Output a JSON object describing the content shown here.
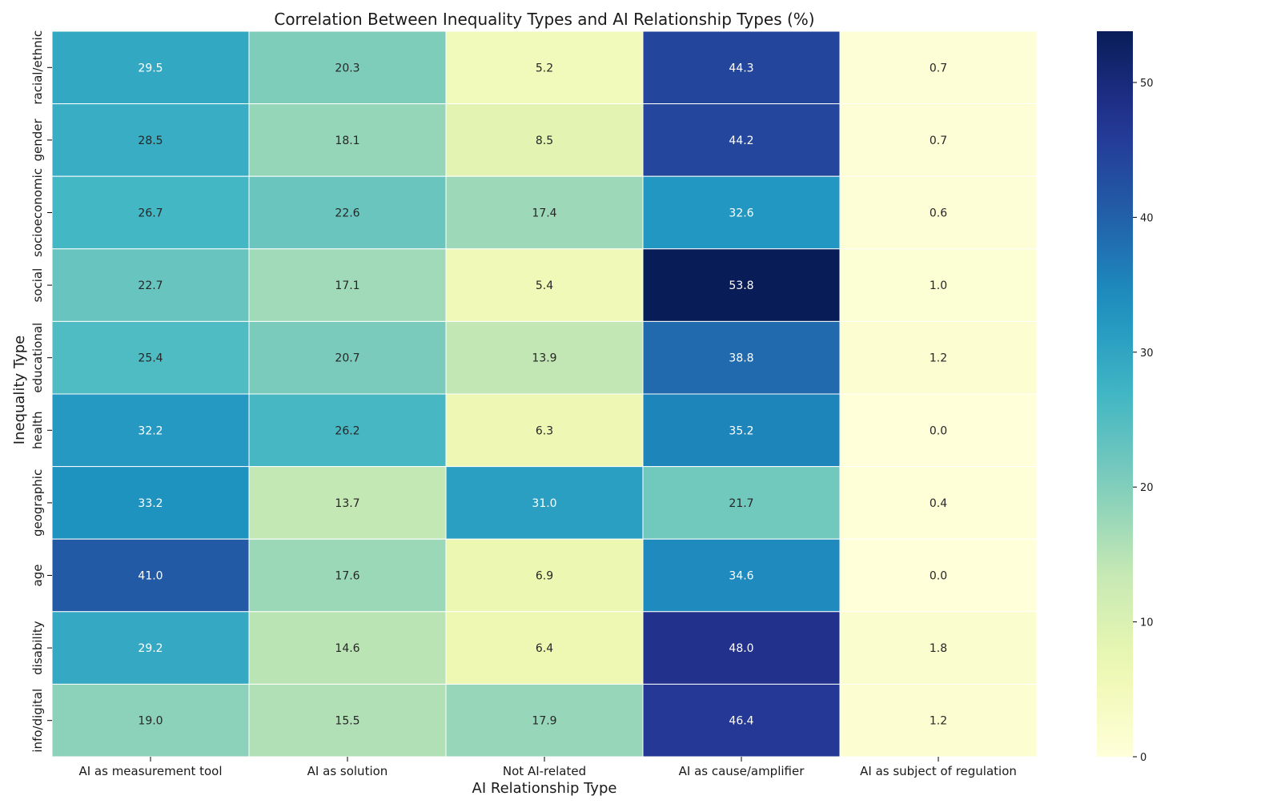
{
  "chart_data": {
    "type": "heatmap",
    "title": "Correlation Between Inequality Types and AI Relationship Types (%)",
    "xlabel": "AI Relationship Type",
    "ylabel": "Inequality Type",
    "x_categories": [
      "AI as measurement tool",
      "AI as solution",
      "Not AI-related",
      "AI as cause/amplifier",
      "AI as subject of regulation"
    ],
    "y_categories": [
      "racial/ethnic",
      "gender",
      "socioeconomic",
      "social",
      "educational",
      "health",
      "geographic",
      "age",
      "disability",
      "info/digital"
    ],
    "values": [
      [
        29.5,
        20.3,
        5.2,
        44.3,
        0.7
      ],
      [
        28.5,
        18.1,
        8.5,
        44.2,
        0.7
      ],
      [
        26.7,
        22.6,
        17.4,
        32.6,
        0.6
      ],
      [
        22.7,
        17.1,
        5.4,
        53.8,
        1.0
      ],
      [
        25.4,
        20.7,
        13.9,
        38.8,
        1.2
      ],
      [
        32.2,
        26.2,
        6.3,
        35.2,
        0.0
      ],
      [
        33.2,
        13.7,
        31.0,
        21.7,
        0.4
      ],
      [
        41.0,
        17.6,
        6.9,
        34.6,
        0.0
      ],
      [
        29.2,
        14.6,
        6.4,
        48.0,
        1.8
      ],
      [
        19.0,
        15.5,
        17.9,
        46.4,
        1.2
      ]
    ],
    "colorbar": {
      "colormap": "YlGnBu",
      "range": [
        0,
        53.8
      ],
      "ticks": [
        0,
        10,
        20,
        30,
        40,
        50
      ]
    },
    "value_format": "1 decimal",
    "grid": false,
    "cell_separator_color": "#ffffff"
  }
}
